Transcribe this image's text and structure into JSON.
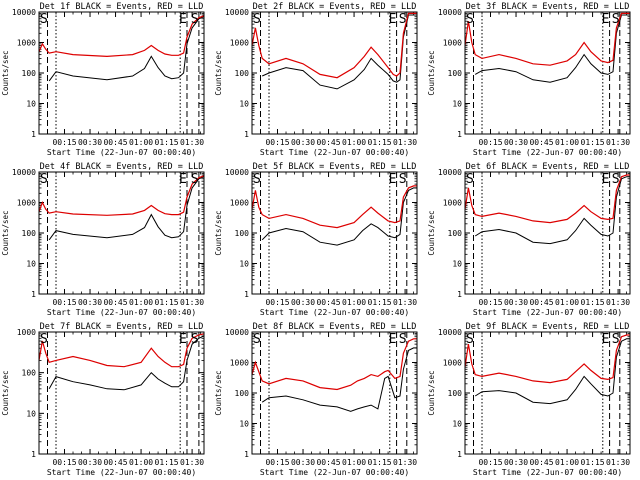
{
  "figure": {
    "ylabel": "Counts/sec",
    "xlabel": "Start Time (22-Jun-07 00:00:40)",
    "x_tick_labels": [
      "00:15",
      "00:30",
      "00:45",
      "01:00",
      "01:15",
      "01:30"
    ],
    "y_tick_labels": [
      "1",
      "10",
      "100",
      "1000",
      "10000"
    ],
    "colors": {
      "events": "#000000",
      "lld": "#dd0000",
      "axes": "#000000",
      "background": "#ffffff"
    }
  },
  "chart_data": [
    {
      "type": "line",
      "title": "Det 1f BLACK = Events, RED = LLD",
      "detector": "1f",
      "ylim": [
        1,
        10000
      ],
      "x_unit": "minutes after 00:00:40",
      "xlim": [
        0,
        97
      ],
      "markers": [
        {
          "label": "S",
          "t": 0
        },
        {
          "label": "E",
          "t": 84
        },
        {
          "label": "S",
          "t": 91
        }
      ],
      "series": [
        {
          "name": "Events",
          "color": "#000000",
          "x": [
            6,
            10,
            20,
            40,
            55,
            62,
            66,
            70,
            74,
            78,
            82,
            85,
            87,
            90,
            94,
            97
          ],
          "y": [
            55,
            110,
            80,
            60,
            80,
            140,
            350,
            150,
            80,
            65,
            70,
            100,
            900,
            3000,
            6000,
            7000
          ]
        },
        {
          "name": "LLD",
          "color": "#dd0000",
          "x": [
            0,
            2,
            4,
            6,
            10,
            20,
            40,
            55,
            62,
            66,
            70,
            74,
            78,
            82,
            85,
            87,
            90,
            94,
            97
          ],
          "y": [
            500,
            900,
            600,
            450,
            500,
            400,
            350,
            400,
            550,
            800,
            550,
            420,
            380,
            380,
            450,
            1500,
            4000,
            6500,
            7500
          ]
        }
      ]
    },
    {
      "type": "line",
      "title": "Det 2f BLACK = Events, RED = LLD",
      "detector": "2f",
      "ylim": [
        1,
        10000
      ],
      "x_unit": "minutes after 00:00:40",
      "xlim": [
        0,
        97
      ],
      "markers": [
        {
          "label": "S",
          "t": 0
        },
        {
          "label": "E",
          "t": 82
        },
        {
          "label": "S",
          "t": 88
        }
      ],
      "series": [
        {
          "name": "Events",
          "color": "#000000",
          "x": [
            6,
            10,
            20,
            30,
            40,
            50,
            60,
            66,
            70,
            74,
            80,
            83,
            85,
            87,
            89,
            92,
            95,
            97
          ],
          "y": [
            80,
            100,
            150,
            120,
            40,
            30,
            60,
            130,
            300,
            180,
            90,
            55,
            50,
            60,
            1500,
            8000,
            8000,
            8000
          ]
        },
        {
          "name": "LLD",
          "color": "#dd0000",
          "x": [
            0,
            2,
            4,
            6,
            10,
            20,
            30,
            40,
            50,
            60,
            66,
            70,
            74,
            80,
            83,
            85,
            87,
            89,
            92,
            95,
            97
          ],
          "y": [
            800,
            3000,
            800,
            300,
            200,
            300,
            200,
            90,
            70,
            150,
            350,
            700,
            400,
            150,
            90,
            80,
            100,
            2000,
            9000,
            9000,
            9000
          ]
        }
      ]
    },
    {
      "type": "line",
      "title": "Det 3f BLACK = Events, RED = LLD",
      "detector": "3f",
      "ylim": [
        1,
        10000
      ],
      "x_unit": "minutes after 00:00:40",
      "xlim": [
        0,
        97
      ],
      "markers": [
        {
          "label": "S",
          "t": 0
        },
        {
          "label": "E",
          "t": 82
        },
        {
          "label": "S",
          "t": 88
        }
      ],
      "series": [
        {
          "name": "Events",
          "color": "#000000",
          "x": [
            6,
            10,
            20,
            30,
            40,
            50,
            60,
            65,
            70,
            74,
            80,
            84,
            87,
            89,
            92,
            95,
            97
          ],
          "y": [
            90,
            120,
            140,
            110,
            60,
            50,
            70,
            150,
            400,
            200,
            100,
            90,
            110,
            2000,
            8000,
            8000,
            8000
          ]
        },
        {
          "name": "LLD",
          "color": "#dd0000",
          "x": [
            0,
            2,
            4,
            6,
            10,
            20,
            30,
            40,
            50,
            60,
            65,
            70,
            74,
            80,
            84,
            87,
            89,
            92,
            95,
            97
          ],
          "y": [
            800,
            5000,
            1000,
            400,
            300,
            400,
            300,
            200,
            180,
            250,
            400,
            1000,
            500,
            250,
            220,
            260,
            3000,
            9000,
            9000,
            9000
          ]
        }
      ]
    },
    {
      "type": "line",
      "title": "Det 4f BLACK = Events, RED = LLD",
      "detector": "4f",
      "ylim": [
        1,
        10000
      ],
      "x_unit": "minutes after 00:00:40",
      "xlim": [
        0,
        97
      ],
      "markers": [
        {
          "label": "S",
          "t": 0
        },
        {
          "label": "E",
          "t": 84
        },
        {
          "label": "S",
          "t": 91
        }
      ],
      "series": [
        {
          "name": "Events",
          "color": "#000000",
          "x": [
            6,
            10,
            20,
            40,
            55,
            62,
            66,
            70,
            74,
            78,
            82,
            85,
            87,
            90,
            94,
            97
          ],
          "y": [
            60,
            120,
            90,
            70,
            90,
            150,
            400,
            160,
            85,
            70,
            75,
            110,
            800,
            3000,
            6000,
            7000
          ]
        },
        {
          "name": "LLD",
          "color": "#dd0000",
          "x": [
            0,
            2,
            4,
            6,
            10,
            20,
            40,
            55,
            62,
            66,
            70,
            74,
            78,
            82,
            85,
            87,
            90,
            94,
            97
          ],
          "y": [
            500,
            1000,
            600,
            450,
            500,
            420,
            380,
            420,
            550,
            800,
            550,
            430,
            400,
            400,
            480,
            1500,
            4000,
            6500,
            7500
          ]
        }
      ]
    },
    {
      "type": "line",
      "title": "Det 5f BLACK = Events, RED = LLD",
      "detector": "5f",
      "ylim": [
        1,
        10000
      ],
      "x_unit": "minutes after 00:00:40",
      "xlim": [
        0,
        97
      ],
      "markers": [
        {
          "label": "S",
          "t": 0
        },
        {
          "label": "E",
          "t": 82
        },
        {
          "label": "S",
          "t": 88
        }
      ],
      "series": [
        {
          "name": "Events",
          "color": "#000000",
          "x": [
            6,
            10,
            20,
            30,
            40,
            50,
            60,
            65,
            70,
            74,
            80,
            84,
            87,
            89,
            92,
            95,
            97
          ],
          "y": [
            60,
            100,
            140,
            110,
            50,
            40,
            60,
            120,
            200,
            150,
            80,
            70,
            90,
            1000,
            2500,
            3000,
            3000
          ]
        },
        {
          "name": "LLD",
          "color": "#dd0000",
          "x": [
            0,
            2,
            4,
            6,
            10,
            20,
            30,
            40,
            50,
            60,
            65,
            70,
            74,
            80,
            84,
            87,
            89,
            92,
            95,
            97
          ],
          "y": [
            600,
            2500,
            700,
            400,
            300,
            400,
            300,
            180,
            150,
            220,
            400,
            700,
            450,
            250,
            220,
            250,
            1500,
            3000,
            3500,
            3500
          ]
        }
      ]
    },
    {
      "type": "line",
      "title": "Det 6f BLACK = Events, RED = LLD",
      "detector": "6f",
      "ylim": [
        1,
        10000
      ],
      "x_unit": "minutes after 00:00:40",
      "xlim": [
        0,
        97
      ],
      "markers": [
        {
          "label": "S",
          "t": 0
        },
        {
          "label": "E",
          "t": 82
        },
        {
          "label": "S",
          "t": 88
        }
      ],
      "series": [
        {
          "name": "Events",
          "color": "#000000",
          "x": [
            6,
            10,
            20,
            30,
            40,
            50,
            60,
            65,
            70,
            74,
            80,
            84,
            87,
            89,
            92,
            95,
            97
          ],
          "y": [
            80,
            110,
            130,
            100,
            50,
            45,
            60,
            120,
            300,
            180,
            90,
            80,
            100,
            1500,
            6000,
            7000,
            7000
          ]
        },
        {
          "name": "LLD",
          "color": "#dd0000",
          "x": [
            0,
            2,
            4,
            6,
            10,
            20,
            30,
            40,
            50,
            60,
            65,
            70,
            74,
            80,
            84,
            87,
            89,
            92,
            95,
            97
          ],
          "y": [
            600,
            3000,
            800,
            400,
            350,
            450,
            350,
            250,
            220,
            280,
            450,
            800,
            500,
            300,
            280,
            300,
            2500,
            7000,
            8000,
            8000
          ]
        }
      ]
    },
    {
      "type": "line",
      "title": "Det 7f BLACK = Events, RED = LLD",
      "detector": "7f",
      "ylim": [
        1,
        1000
      ],
      "x_unit": "minutes after 00:00:40",
      "xlim": [
        0,
        97
      ],
      "markers": [
        {
          "label": "S",
          "t": 0
        },
        {
          "label": "E",
          "t": 84
        },
        {
          "label": "S",
          "t": 91
        }
      ],
      "series": [
        {
          "name": "Events",
          "color": "#000000",
          "x": [
            6,
            10,
            20,
            30,
            40,
            50,
            60,
            66,
            70,
            74,
            78,
            82,
            85,
            87,
            90,
            94,
            97
          ],
          "y": [
            40,
            80,
            60,
            50,
            40,
            38,
            50,
            100,
            70,
            55,
            45,
            45,
            60,
            200,
            500,
            700,
            800
          ]
        },
        {
          "name": "LLD",
          "color": "#dd0000",
          "x": [
            0,
            2,
            4,
            6,
            10,
            20,
            30,
            40,
            50,
            60,
            66,
            70,
            74,
            78,
            82,
            85,
            87,
            90,
            94,
            97
          ],
          "y": [
            200,
            600,
            300,
            180,
            200,
            250,
            200,
            150,
            140,
            180,
            400,
            250,
            180,
            140,
            140,
            160,
            400,
            700,
            850,
            900
          ]
        }
      ]
    },
    {
      "type": "line",
      "title": "Det 8f BLACK = Events, RED = LLD",
      "detector": "8f",
      "ylim": [
        1,
        10000
      ],
      "x_unit": "minutes after 00:00:40",
      "xlim": [
        0,
        97
      ],
      "markers": [
        {
          "label": "S",
          "t": 0
        },
        {
          "label": "E",
          "t": 82
        },
        {
          "label": "S",
          "t": 88
        }
      ],
      "series": [
        {
          "name": "Events",
          "color": "#000000",
          "x": [
            6,
            10,
            20,
            30,
            40,
            50,
            58,
            62,
            66,
            70,
            74,
            78,
            80,
            84,
            87,
            89,
            92,
            95,
            97
          ],
          "y": [
            50,
            70,
            80,
            60,
            40,
            35,
            25,
            30,
            35,
            40,
            30,
            300,
            350,
            70,
            80,
            600,
            2500,
            3000,
            3000
          ]
        },
        {
          "name": "LLD",
          "color": "#dd0000",
          "x": [
            0,
            2,
            4,
            6,
            10,
            20,
            30,
            40,
            50,
            58,
            62,
            66,
            70,
            74,
            78,
            80,
            84,
            87,
            89,
            92,
            95,
            97
          ],
          "y": [
            400,
            1000,
            500,
            250,
            200,
            300,
            250,
            150,
            130,
            180,
            250,
            300,
            400,
            350,
            500,
            550,
            300,
            350,
            2000,
            5000,
            6000,
            6000
          ]
        }
      ]
    },
    {
      "type": "line",
      "title": "Det 9f BLACK = Events, RED = LLD",
      "detector": "9f",
      "ylim": [
        1,
        10000
      ],
      "x_unit": "minutes after 00:00:40",
      "xlim": [
        0,
        97
      ],
      "markers": [
        {
          "label": "S",
          "t": 0
        },
        {
          "label": "E",
          "t": 82
        },
        {
          "label": "S",
          "t": 88
        }
      ],
      "series": [
        {
          "name": "Events",
          "color": "#000000",
          "x": [
            6,
            10,
            20,
            30,
            40,
            50,
            60,
            65,
            70,
            74,
            80,
            84,
            87,
            89,
            92,
            95,
            97
          ],
          "y": [
            80,
            110,
            120,
            100,
            50,
            45,
            60,
            130,
            350,
            200,
            90,
            80,
            100,
            1500,
            5000,
            6000,
            6000
          ]
        },
        {
          "name": "LLD",
          "color": "#dd0000",
          "x": [
            0,
            2,
            4,
            6,
            10,
            20,
            30,
            40,
            50,
            60,
            65,
            70,
            74,
            80,
            84,
            87,
            89,
            92,
            95,
            97
          ],
          "y": [
            700,
            4000,
            900,
            400,
            350,
            450,
            350,
            250,
            220,
            280,
            500,
            900,
            550,
            300,
            280,
            320,
            2500,
            7000,
            8000,
            8000
          ]
        }
      ]
    }
  ]
}
